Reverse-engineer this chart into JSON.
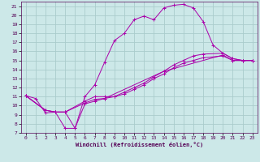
{
  "xlabel": "Windchill (Refroidissement éolien,°C)",
  "bg_color": "#cce8e8",
  "grid_color": "#aacccc",
  "line_color": "#aa00aa",
  "xlim": [
    -0.5,
    23.5
  ],
  "ylim": [
    7,
    21.5
  ],
  "xticks": [
    0,
    1,
    2,
    3,
    4,
    5,
    6,
    7,
    8,
    9,
    10,
    11,
    12,
    13,
    14,
    15,
    16,
    17,
    18,
    19,
    20,
    21,
    22,
    23
  ],
  "yticks": [
    7,
    8,
    9,
    10,
    11,
    12,
    13,
    14,
    15,
    16,
    17,
    18,
    19,
    20,
    21
  ],
  "curve1_x": [
    0,
    1,
    2,
    3,
    4,
    5,
    6,
    7,
    8,
    9,
    10,
    11,
    12,
    13,
    14,
    15,
    16,
    17,
    18,
    19,
    20,
    21,
    22,
    23
  ],
  "curve1_y": [
    11.1,
    10.8,
    9.2,
    9.3,
    7.5,
    7.5,
    11.0,
    12.3,
    14.8,
    17.2,
    18.0,
    19.5,
    19.9,
    19.5,
    20.8,
    21.1,
    21.2,
    20.8,
    19.3,
    16.7,
    15.8,
    15.2,
    15.0,
    15.0
  ],
  "curve2_x": [
    0,
    2,
    3,
    4,
    6,
    7,
    8,
    9,
    10,
    11,
    12,
    13,
    14,
    15,
    16,
    17,
    18,
    20,
    21,
    22,
    23
  ],
  "curve2_y": [
    11.1,
    9.5,
    9.3,
    9.3,
    10.5,
    11.0,
    11.0,
    11.0,
    11.5,
    12.0,
    12.5,
    13.2,
    13.8,
    14.5,
    15.0,
    15.5,
    15.7,
    15.8,
    15.2,
    15.0,
    15.0
  ],
  "curve3_x": [
    0,
    2,
    3,
    4,
    6,
    7,
    8,
    9,
    10,
    11,
    12,
    13,
    14,
    15,
    16,
    17,
    18,
    20,
    21,
    22,
    23
  ],
  "curve3_y": [
    11.1,
    9.5,
    9.3,
    9.3,
    10.3,
    10.7,
    10.8,
    11.0,
    11.3,
    11.8,
    12.3,
    13.0,
    13.5,
    14.2,
    14.7,
    15.0,
    15.3,
    15.5,
    15.0,
    15.0,
    15.0
  ],
  "curve4_x": [
    0,
    2,
    3,
    4,
    5,
    6,
    7,
    8,
    14,
    20,
    21,
    22,
    23
  ],
  "curve4_y": [
    11.1,
    9.5,
    9.3,
    9.3,
    7.5,
    10.2,
    10.5,
    10.8,
    13.8,
    15.6,
    15.0,
    15.0,
    15.0
  ]
}
